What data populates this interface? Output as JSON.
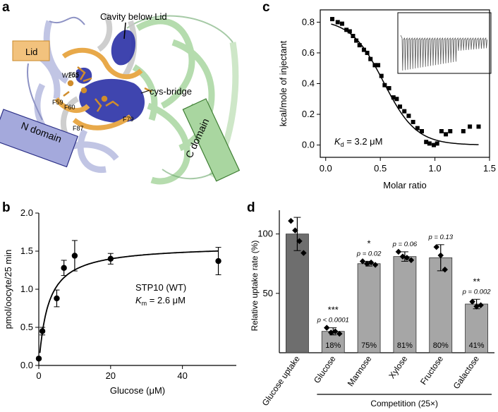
{
  "panel_labels": {
    "a": "a",
    "b": "b",
    "c": "c",
    "d": "d"
  },
  "structure": {
    "labels": {
      "cavity": "Cavity below Lid",
      "lid": "Lid",
      "w202": "W202",
      "f55": "F55",
      "f59": "F59",
      "f60": "F60",
      "f87": "F87",
      "f79": "F79",
      "cys_bridge": "cys-bridge",
      "n_domain": "N domain",
      "c_domain": "C domain"
    },
    "colors": {
      "lid": "#e8a94a",
      "n_domain": "#9aa0d8",
      "c_domain": "#a9d6a0",
      "cavity": "#2f35a8"
    }
  },
  "chart_data": [
    {
      "id": "b",
      "type": "scatter",
      "xlabel": "Glucose (μM)",
      "ylabel": "pmol/oocyte/25 min",
      "xlim": [
        0,
        55
      ],
      "ylim": [
        0,
        2.0
      ],
      "xticks": [
        0,
        20,
        40
      ],
      "yticks": [
        0.0,
        0.5,
        1.0,
        1.5,
        2.0
      ],
      "ytick_labels": [
        "0.0",
        "0.5",
        "1.0",
        "1.5",
        "2.0"
      ],
      "points": [
        {
          "x": 0,
          "y": 0.09,
          "err": 0
        },
        {
          "x": 1,
          "y": 0.45,
          "err": 0.05
        },
        {
          "x": 5,
          "y": 0.88,
          "err": 0.11
        },
        {
          "x": 7,
          "y": 1.28,
          "err": 0.1
        },
        {
          "x": 10,
          "y": 1.44,
          "err": 0.2
        },
        {
          "x": 20,
          "y": 1.4,
          "err": 0.07
        },
        {
          "x": 50,
          "y": 1.37,
          "err": 0.18
        }
      ],
      "fit": {
        "model": "michaelis-menten",
        "vmax": 1.58,
        "km": 2.6
      },
      "annotation": {
        "name": "STP10 (WT)",
        "km_symbol": "K",
        "km_sub": "m",
        "km_value": " = 2.6 μM"
      }
    },
    {
      "id": "c",
      "type": "scatter",
      "xlabel": "Molar ratio",
      "ylabel": "kcal/mole of injectant",
      "xlim": [
        -0.05,
        1.5
      ],
      "ylim": [
        -0.08,
        0.88
      ],
      "xticks": [
        0.0,
        0.5,
        1.0,
        1.5
      ],
      "xtick_labels": [
        "0.0",
        "0.5",
        "1.0",
        "1.5"
      ],
      "yticks": [
        0.0,
        0.2,
        0.4,
        0.6,
        0.8
      ],
      "ytick_labels": [
        "0.0",
        "0.2",
        "0.4",
        "0.6",
        "0.8"
      ],
      "points": [
        {
          "x": 0.06,
          "y": 0.82
        },
        {
          "x": 0.11,
          "y": 0.8
        },
        {
          "x": 0.15,
          "y": 0.79
        },
        {
          "x": 0.19,
          "y": 0.75
        },
        {
          "x": 0.22,
          "y": 0.74
        },
        {
          "x": 0.25,
          "y": 0.71
        },
        {
          "x": 0.28,
          "y": 0.68
        },
        {
          "x": 0.31,
          "y": 0.65
        },
        {
          "x": 0.35,
          "y": 0.62
        },
        {
          "x": 0.38,
          "y": 0.6
        },
        {
          "x": 0.41,
          "y": 0.56
        },
        {
          "x": 0.45,
          "y": 0.52
        },
        {
          "x": 0.48,
          "y": 0.52
        },
        {
          "x": 0.51,
          "y": 0.45
        },
        {
          "x": 0.54,
          "y": 0.39
        },
        {
          "x": 0.58,
          "y": 0.37
        },
        {
          "x": 0.62,
          "y": 0.31
        },
        {
          "x": 0.65,
          "y": 0.3
        },
        {
          "x": 0.68,
          "y": 0.25
        },
        {
          "x": 0.72,
          "y": 0.22
        },
        {
          "x": 0.76,
          "y": 0.19
        },
        {
          "x": 0.8,
          "y": 0.15
        },
        {
          "x": 0.84,
          "y": 0.11
        },
        {
          "x": 0.88,
          "y": 0.09
        },
        {
          "x": 0.92,
          "y": 0.02
        },
        {
          "x": 0.95,
          "y": 0.01
        },
        {
          "x": 0.99,
          "y": 0.0
        },
        {
          "x": 1.02,
          "y": 0.01
        },
        {
          "x": 1.06,
          "y": 0.09
        },
        {
          "x": 1.1,
          "y": 0.07
        },
        {
          "x": 1.14,
          "y": 0.09
        },
        {
          "x": 1.26,
          "y": 0.09
        },
        {
          "x": 1.32,
          "y": 0.12
        },
        {
          "x": 1.4,
          "y": 0.12
        }
      ],
      "fit": {
        "model": "sigmoid",
        "top": 0.82,
        "bottom": 0.0,
        "mid": 0.53,
        "width": 0.15
      },
      "annotation": {
        "kd_symbol": "K",
        "kd_sub": "d",
        "kd_value": " = 3.2 μM"
      }
    },
    {
      "id": "d",
      "type": "bar",
      "ylabel": "Relative uptake rate (%)",
      "ylim": [
        0,
        120
      ],
      "yticks": [
        50,
        100
      ],
      "categories": [
        "Glucose uptake",
        "Glucose",
        "Mannose",
        "Xylose",
        "Fructose",
        "Galactose"
      ],
      "values": [
        100,
        18,
        75,
        81,
        80,
        41
      ],
      "errors": [
        14,
        3,
        2,
        4,
        11,
        4
      ],
      "bar_labels": [
        "",
        "18%",
        "75%",
        "81%",
        "80%",
        "41%"
      ],
      "stars": [
        "",
        "***",
        "*",
        "",
        "",
        "**"
      ],
      "pvalues": [
        "",
        "p < 0.0001",
        "p = 0.02",
        "p = 0.06",
        "p = 0.13",
        "p = 0.002"
      ],
      "replicates": [
        [
          111,
          103,
          94,
          84
        ],
        [
          21,
          17,
          18,
          16
        ],
        [
          77,
          75,
          76,
          74
        ],
        [
          85,
          81,
          80,
          78
        ],
        [
          89,
          82,
          70
        ],
        [
          43,
          39,
          40
        ]
      ],
      "group_label": "Competition (25×)",
      "colors": {
        "first": "#6e6e6e",
        "rest": "#a6a6a6"
      }
    }
  ]
}
